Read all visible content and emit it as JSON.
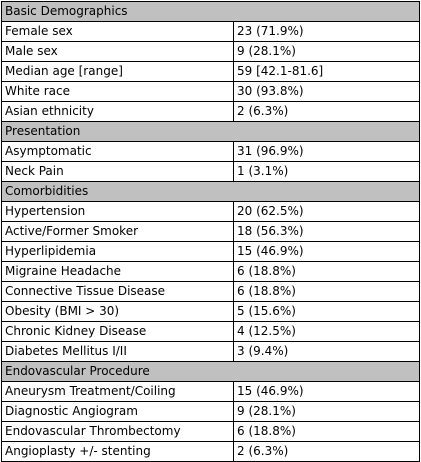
{
  "table": {
    "sections": [
      {
        "title": "Basic Demographics",
        "rows": [
          {
            "label": "Female sex",
            "value": "23 (71.9%)"
          },
          {
            "label": "Male sex",
            "value": "9 (28.1%)"
          },
          {
            "label": "Median age [range]",
            "value": "59 [42.1-81.6]"
          },
          {
            "label": "White race",
            "value": "30 (93.8%)"
          },
          {
            "label": "Asian ethnicity",
            "value": "2 (6.3%)"
          }
        ]
      },
      {
        "title": "Presentation",
        "rows": [
          {
            "label": "Asymptomatic",
            "value": "31 (96.9%)"
          },
          {
            "label": "Neck Pain",
            "value": "1 (3.1%)"
          }
        ]
      },
      {
        "title": "Comorbidities",
        "rows": [
          {
            "label": "Hypertension",
            "value": "20 (62.5%)"
          },
          {
            "label": "Active/Former Smoker",
            "value": "18 (56.3%)"
          },
          {
            "label": "Hyperlipidemia",
            "value": "15 (46.9%)"
          },
          {
            "label": "Migraine Headache",
            "value": "6 (18.8%)"
          },
          {
            "label": "Connective Tissue Disease",
            "value": "6 (18.8%)"
          },
          {
            "label": "Obesity (BMI > 30)",
            "value": "5 (15.6%)"
          },
          {
            "label": "Chronic Kidney Disease",
            "value": "4 (12.5%)"
          },
          {
            "label": "Diabetes Mellitus I/II",
            "value": "3 (9.4%)"
          }
        ]
      },
      {
        "title": "Endovascular Procedure",
        "rows": [
          {
            "label": "Aneurysm Treatment/Coiling",
            "value": "15 (46.9%)"
          },
          {
            "label": "Diagnostic Angiogram",
            "value": "9 (28.1%)"
          },
          {
            "label": "Endovascular Thrombectomy",
            "value": "6 (18.8%)"
          },
          {
            "label": "Angioplasty +/- stenting",
            "value": "2 (6.3%)"
          }
        ]
      }
    ],
    "colors": {
      "section_fill": "#c0c0c0",
      "border": "#000000",
      "background": "#ffffff"
    }
  }
}
